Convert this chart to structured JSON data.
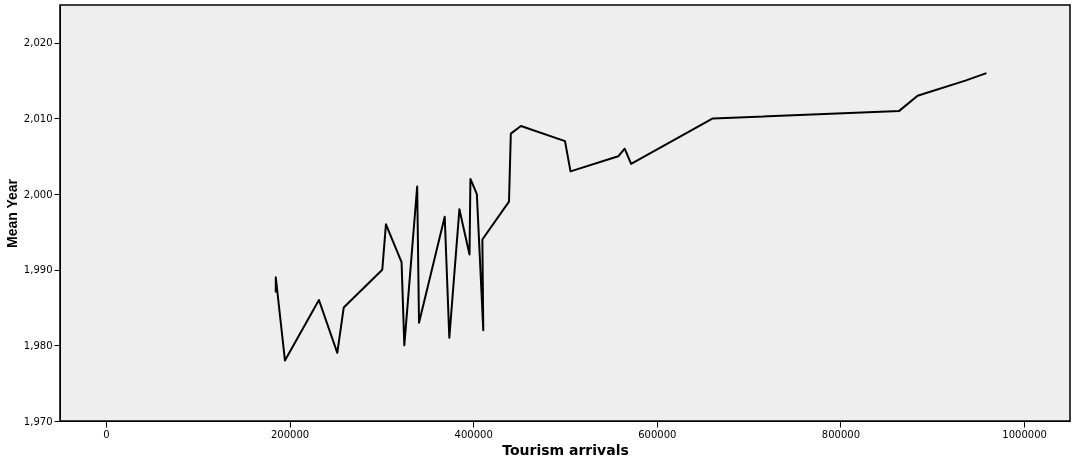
{
  "chart_data": {
    "type": "line",
    "xlabel": "Tourism arrivals",
    "ylabel": "Mean Year",
    "x": [
      185000,
      185000,
      195000,
      232000,
      252000,
      259000,
      301000,
      305000,
      322000,
      325000,
      339000,
      341000,
      369000,
      374000,
      385000,
      396000,
      397000,
      404000,
      411000,
      410000,
      439000,
      441000,
      452000,
      500000,
      506000,
      558000,
      565000,
      572000,
      661000,
      864000,
      884000,
      936000,
      959000
    ],
    "series": [
      {
        "color": "#000000",
        "values": [
          1987,
          1989,
          1978,
          1986,
          1979,
          1985,
          1990,
          1996,
          1991,
          1980,
          2001,
          1983,
          1997,
          1981,
          1998,
          1992,
          2002,
          2000,
          1982,
          1994,
          1999,
          2008,
          2009,
          2007,
          2003,
          2005,
          2006,
          2004,
          2010,
          2011,
          2013,
          2015,
          2016
        ]
      }
    ],
    "xlim": [
      -50000,
      1050000
    ],
    "xticks": [
      0,
      200000,
      400000,
      600000,
      800000,
      1000000
    ],
    "ylim": [
      1970,
      2025
    ],
    "yticks": [
      {
        "value": 1970,
        "label": "1,970"
      },
      {
        "value": 1980,
        "label": "1,980"
      },
      {
        "value": 1990,
        "label": "1,990"
      },
      {
        "value": 2000,
        "label": "2,000"
      },
      {
        "value": 2010,
        "label": "2,010"
      },
      {
        "value": 2020,
        "label": "2,020"
      }
    ],
    "grid": false,
    "marker": "none",
    "line_style": "solid"
  }
}
